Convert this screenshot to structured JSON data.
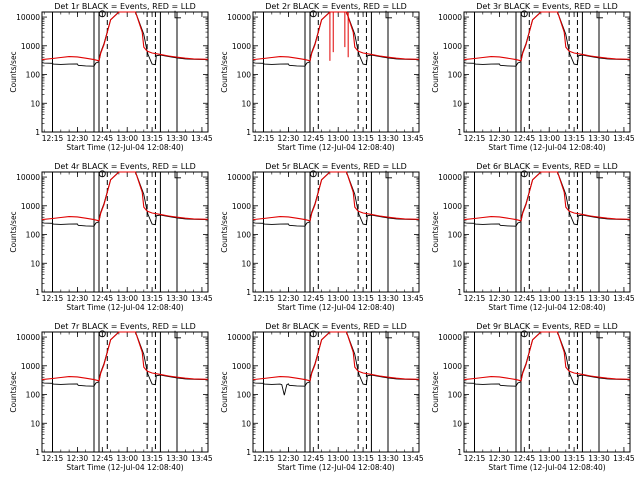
{
  "figure": {
    "x_axis_title": "Start Time (12-Jul-04 12:08:40)",
    "y_axis_title": "Counts/sec",
    "colors": {
      "events": "#000000",
      "lld": "#e00000",
      "background": "#ffffff"
    }
  },
  "chart_data": [
    {
      "type": "line",
      "title": "Det  1r BLACK = Events, RED = LLD",
      "anomaly": "none"
    },
    {
      "type": "line",
      "title": "Det  2r BLACK = Events, RED = LLD",
      "anomaly": "spikes"
    },
    {
      "type": "line",
      "title": "Det  3r BLACK = Events, RED = LLD",
      "anomaly": "none"
    },
    {
      "type": "line",
      "title": "Det  4r BLACK = Events, RED = LLD",
      "anomaly": "none"
    },
    {
      "type": "line",
      "title": "Det  5r BLACK = Events, RED = LLD",
      "anomaly": "none"
    },
    {
      "type": "line",
      "title": "Det  6r BLACK = Events, RED = LLD",
      "anomaly": "none"
    },
    {
      "type": "line",
      "title": "Det  7r BLACK = Events, RED = LLD",
      "anomaly": "none"
    },
    {
      "type": "line",
      "title": "Det  8r BLACK = Events, RED = LLD",
      "anomaly": "dip"
    },
    {
      "type": "line",
      "title": "Det  9r BLACK = Events, RED = LLD",
      "anomaly": "none"
    }
  ],
  "shared": {
    "xlim": [
      "12:08:40",
      "13:48:40"
    ],
    "ylim": [
      1,
      15000
    ],
    "yscale": "log",
    "xticks": [
      "12:15",
      "12:30",
      "12:45",
      "13:00",
      "13:15",
      "13:30",
      "13:45"
    ],
    "yticks": [
      "1",
      "10",
      "100",
      "1000",
      "10000"
    ],
    "solid_vlines": [
      "12:15",
      "12:40",
      "12:43",
      "13:20",
      "13:30"
    ],
    "dashed_vlines": [
      "12:48",
      "13:12",
      "13:17"
    ],
    "markers": [
      {
        "shape": "circle",
        "x": "12:45",
        "y": 13000
      },
      {
        "shape": "bracket",
        "x": "13:30",
        "y": 12000
      }
    ],
    "events_series": {
      "name": "Events",
      "x": [
        "12:08:40",
        "12:10",
        "12:15",
        "12:15:30",
        "12:20",
        "12:25",
        "12:30",
        "12:30:30",
        "12:35",
        "12:40",
        "12:41",
        "12:43",
        "12:44",
        "12:46",
        "12:50",
        "12:55",
        "13:05",
        "13:10",
        "13:12",
        "13:12:30",
        "13:15",
        "13:17",
        "13:17:30",
        "13:20",
        "13:25",
        "13:30",
        "13:35",
        "13:40",
        "13:48:40"
      ],
      "y": [
        260,
        250,
        245,
        230,
        225,
        230,
        235,
        210,
        200,
        195,
        250,
        280,
        600,
        1200,
        8000,
        15000,
        15000,
        2500,
        650,
        500,
        230,
        220,
        450,
        480,
        420,
        380,
        350,
        340,
        330
      ]
    },
    "lld_series": {
      "name": "LLD",
      "x": [
        "12:08:40",
        "12:15",
        "12:20",
        "12:25",
        "12:30",
        "12:35",
        "12:40",
        "12:43",
        "12:44",
        "12:46",
        "12:50",
        "12:55",
        "13:05",
        "13:09",
        "13:10",
        "13:12",
        "13:15",
        "13:20",
        "13:25",
        "13:30",
        "13:35",
        "13:40",
        "13:48:40"
      ],
      "y": [
        330,
        360,
        390,
        420,
        410,
        370,
        330,
        300,
        550,
        1100,
        8000,
        15000,
        15000,
        3000,
        900,
        650,
        560,
        500,
        440,
        400,
        370,
        350,
        340
      ]
    }
  }
}
